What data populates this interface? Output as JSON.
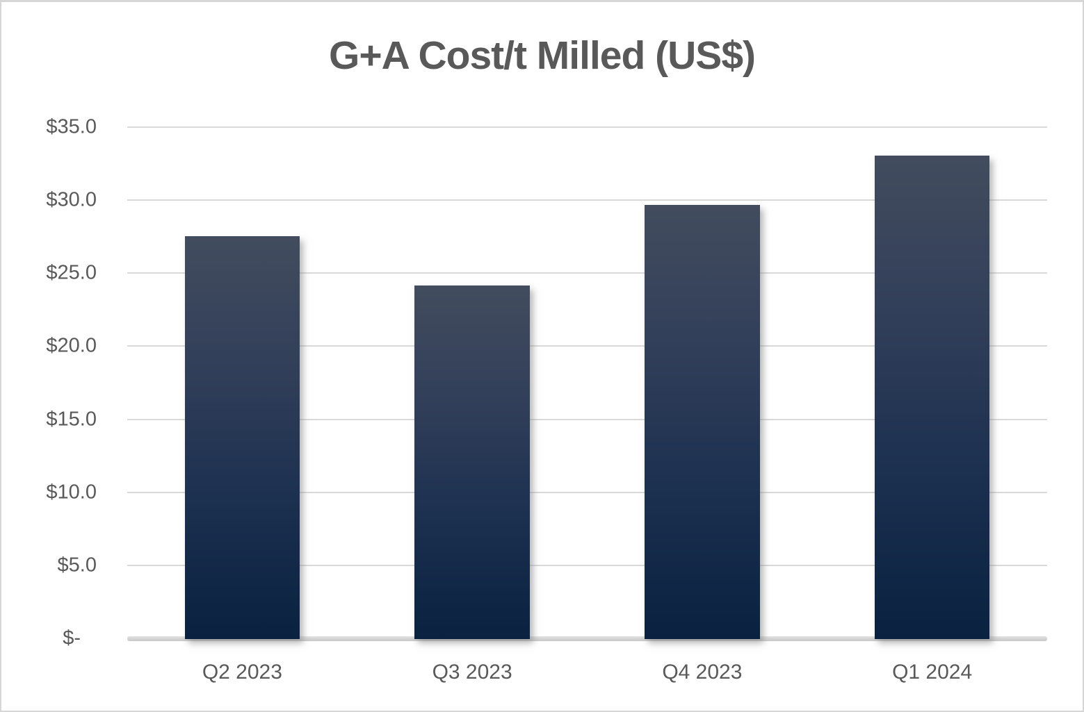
{
  "chart_data": {
    "type": "bar",
    "title": "G+A Cost/t Milled (US$)",
    "categories": [
      "Q2 2023",
      "Q3 2023",
      "Q4 2023",
      "Q1 2024"
    ],
    "values": [
      27.6,
      24.2,
      29.7,
      33.1
    ],
    "xlabel": "",
    "ylabel": "",
    "ylim": [
      0,
      35
    ],
    "y_ticks": [
      {
        "label": "$35.0",
        "value": 35
      },
      {
        "label": "$30.0",
        "value": 30
      },
      {
        "label": "$25.0",
        "value": 25
      },
      {
        "label": "$20.0",
        "value": 20
      },
      {
        "label": "$15.0",
        "value": 15
      },
      {
        "label": "$10.0",
        "value": 10
      },
      {
        "label": "$5.0",
        "value": 5
      },
      {
        "label": "$-",
        "value": 0
      }
    ],
    "grid": true,
    "legend": "none",
    "bar_width_fraction": 0.5,
    "colors": {
      "bar_gradient_top": "#424c5e",
      "bar_gradient_bottom": "#0a2140",
      "gridline": "#d9d9d9",
      "axis_line": "#cfcdcd",
      "text": "#595959",
      "frame_border": "#d6d6d6",
      "background": "#ffffff"
    }
  }
}
